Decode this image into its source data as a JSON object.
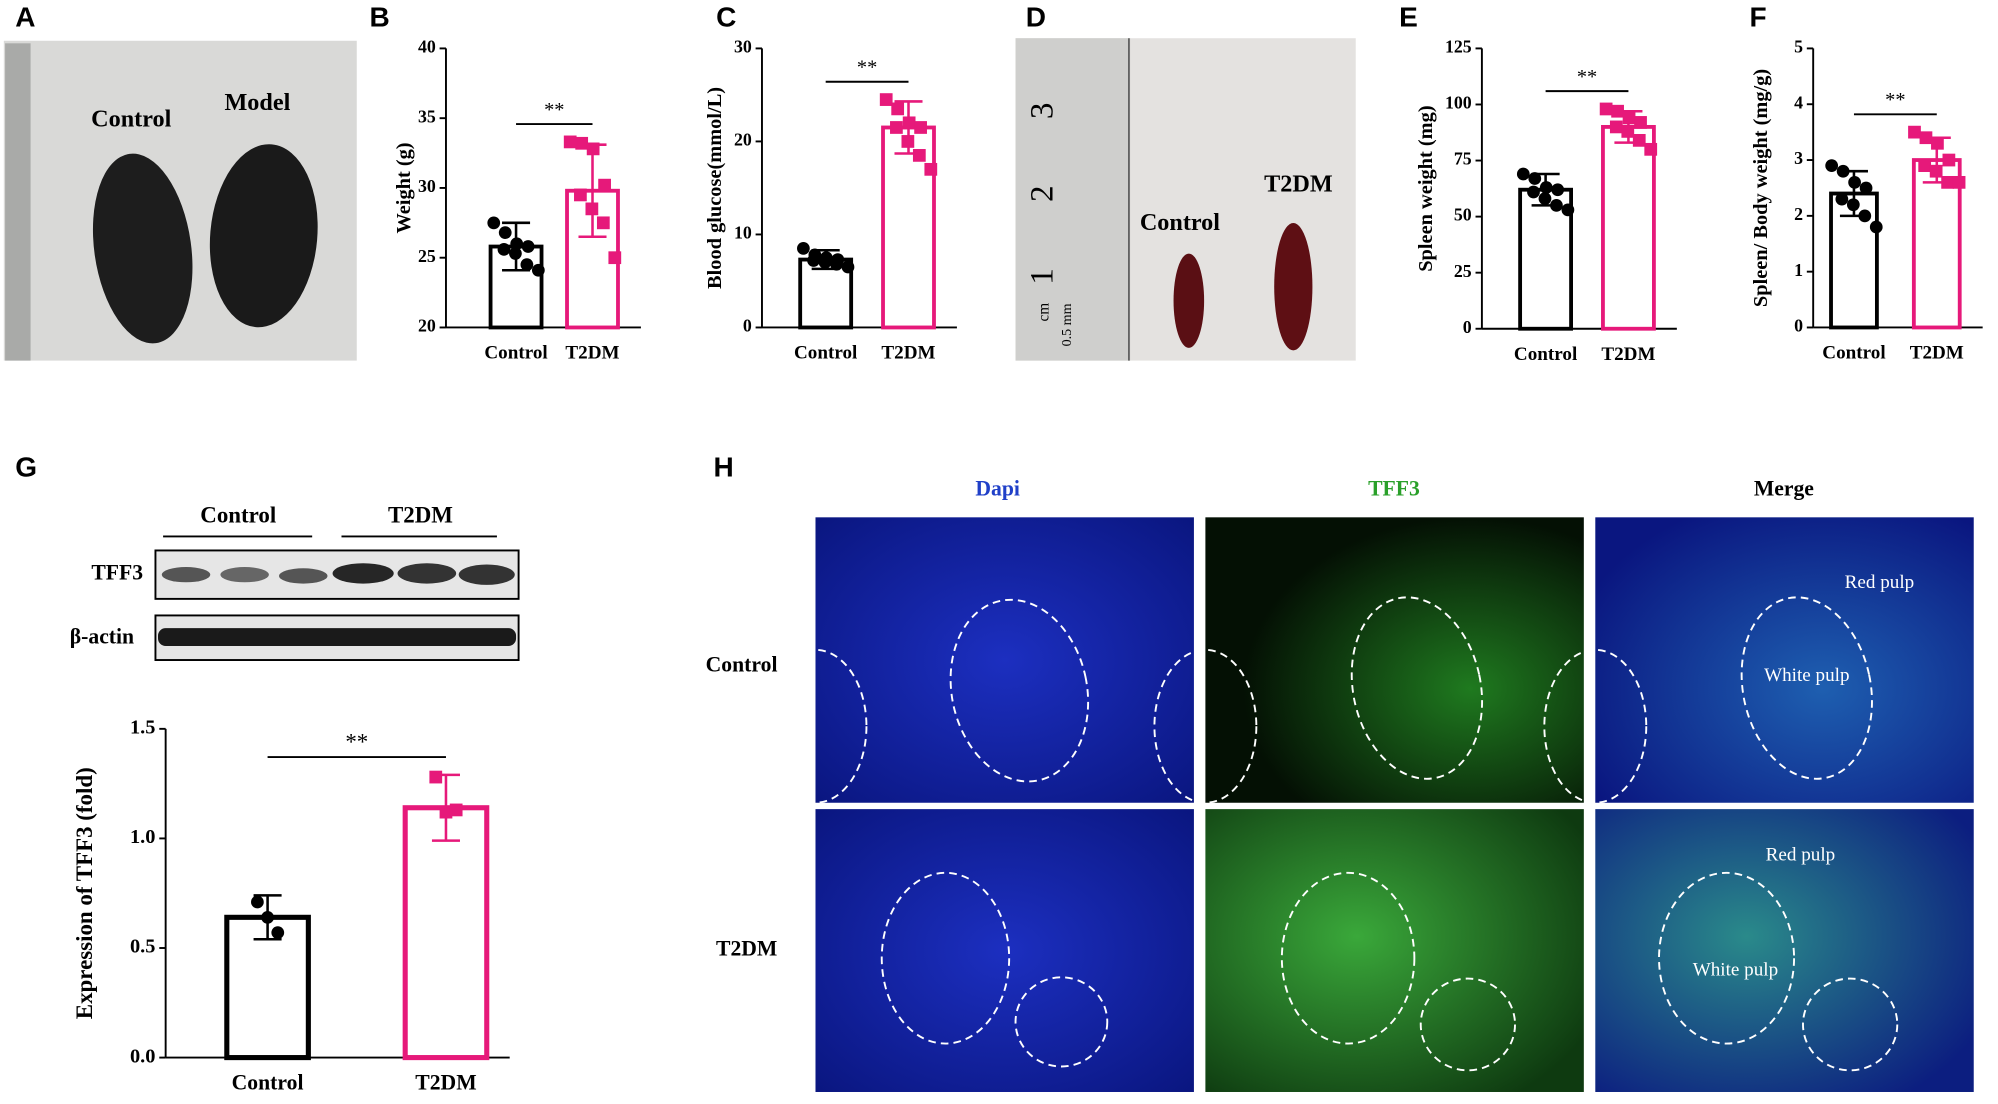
{
  "chart_data": [
    {
      "type": "bar",
      "panel": "B",
      "ylabel": "Weight (g)",
      "categories": [
        "Control",
        "T2DM"
      ],
      "values": [
        25.8,
        29.8
      ],
      "errors": [
        1.7,
        3.3
      ],
      "points": [
        [
          27.5,
          26.8,
          26.0,
          25.8,
          25.6,
          25.3,
          24.5,
          24.1
        ],
        [
          33.3,
          33.2,
          32.8,
          30.2,
          29.5,
          28.5,
          27.5,
          25.0
        ]
      ],
      "colors": [
        "#000000",
        "#e6197a"
      ],
      "markers": [
        "circle",
        "square"
      ],
      "ylim": [
        20,
        40
      ],
      "yticks": [
        20,
        25,
        30,
        35,
        40
      ],
      "annotation": "**"
    },
    {
      "type": "bar",
      "panel": "C",
      "ylabel": "Blood glucose(mmol/L)",
      "categories": [
        "Control",
        "T2DM"
      ],
      "values": [
        7.3,
        21.5
      ],
      "errors": [
        1.0,
        2.8
      ],
      "points": [
        [
          8.5,
          7.8,
          7.5,
          7.3,
          7.2,
          7.0,
          6.8,
          6.5
        ],
        [
          24.5,
          23.5,
          22.0,
          21.5,
          21.5,
          20.0,
          18.5,
          17.0
        ]
      ],
      "colors": [
        "#000000",
        "#e6197a"
      ],
      "markers": [
        "circle",
        "square"
      ],
      "ylim": [
        0,
        30
      ],
      "yticks": [
        0,
        10,
        20,
        30
      ],
      "annotation": "**"
    },
    {
      "type": "bar",
      "panel": "E",
      "ylabel": "Spleen weight (mg)",
      "categories": [
        "Control",
        "T2DM"
      ],
      "values": [
        62,
        90
      ],
      "errors": [
        7,
        7
      ],
      "points": [
        [
          69,
          67,
          63,
          62,
          61,
          58,
          55,
          53
        ],
        [
          98,
          97,
          94,
          92,
          90,
          88,
          84,
          80
        ]
      ],
      "colors": [
        "#000000",
        "#e6197a"
      ],
      "markers": [
        "circle",
        "square"
      ],
      "ylim": [
        0,
        125
      ],
      "yticks": [
        0,
        25,
        50,
        75,
        100,
        125
      ],
      "annotation": "**"
    },
    {
      "type": "bar",
      "panel": "F",
      "ylabel": "Spleen/ Body weight (mg/g)",
      "categories": [
        "Control",
        "T2DM"
      ],
      "values": [
        2.4,
        3.0
      ],
      "errors": [
        0.4,
        0.4
      ],
      "points": [
        [
          2.9,
          2.8,
          2.6,
          2.5,
          2.3,
          2.2,
          2.0,
          1.8
        ],
        [
          3.5,
          3.4,
          3.3,
          3.0,
          2.9,
          2.8,
          2.6,
          2.6
        ]
      ],
      "colors": [
        "#000000",
        "#e6197a"
      ],
      "markers": [
        "circle",
        "square"
      ],
      "ylim": [
        0,
        5
      ],
      "yticks": [
        0,
        1,
        2,
        3,
        4,
        5
      ],
      "annotation": "**"
    },
    {
      "type": "bar",
      "panel": "G",
      "ylabel": "Expression of TFF3 (fold)",
      "categories": [
        "Control",
        "T2DM"
      ],
      "values": [
        0.64,
        1.14
      ],
      "errors": [
        0.1,
        0.15
      ],
      "points": [
        [
          0.71,
          0.64,
          0.57
        ],
        [
          1.28,
          1.12,
          1.13
        ]
      ],
      "colors": [
        "#000000",
        "#e6197a"
      ],
      "markers": [
        "circle",
        "square"
      ],
      "ylim": [
        0,
        1.5
      ],
      "yticks": [
        {
          "value": 0,
          "label": "0.0"
        },
        {
          "value": 0.5,
          "label": "0.5"
        },
        {
          "value": 1,
          "label": "1.0"
        },
        {
          "value": 1.5,
          "label": "1.5"
        }
      ],
      "annotation": "**"
    }
  ],
  "photo_a": {
    "panel": "A",
    "labels": [
      "Control",
      "Model"
    ]
  },
  "photo_d": {
    "panel": "D",
    "ruler_labels": [
      "3",
      "2",
      "1",
      "cm",
      "0.5 mm"
    ],
    "labels": [
      "Control",
      "T2DM"
    ]
  },
  "blot": {
    "groups": [
      "Control",
      "T2DM"
    ],
    "rows": [
      "TFF3",
      "β-actin"
    ]
  },
  "fluorescence": {
    "panel": "H",
    "columns": [
      "Dapi",
      "TFF3",
      "Merge"
    ],
    "rows": [
      "Control",
      "T2DM"
    ],
    "annotations": [
      "Red pulp",
      "White pulp"
    ]
  }
}
